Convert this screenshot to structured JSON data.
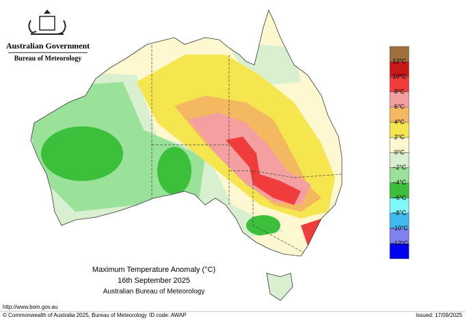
{
  "header": {
    "government": "Australian Government",
    "bureau": "Bureau of Meteorology"
  },
  "title": {
    "line1": "Maximum Temperature Anomaly (°C)",
    "line2": "16th September 2025",
    "line3": "Australian Bureau of Meteorology"
  },
  "legend": {
    "colors": [
      "#a0703c",
      "#c81818",
      "#f03c3c",
      "#f4a0a0",
      "#f4b860",
      "#f5e650",
      "#fdf8d0",
      "#d8f0d0",
      "#9ae29a",
      "#3cc03c",
      "#80f8f8",
      "#40b8f0",
      "#8080f0",
      "#0000f0"
    ],
    "labels": [
      "12°C",
      "10°C",
      "8°C",
      "6°C",
      "4°C",
      "2°C",
      "0°C",
      "−2°C",
      "−4°C",
      "−6°C",
      "−8°C",
      "−10°C",
      "−12°C"
    ]
  },
  "footer": {
    "url": "http://www.bom.gov.au",
    "copyright": "© Commonwealth of Australia 2025, Bureau of Meteorology",
    "id_code": "ID code: AWAP",
    "issued": "Issued: 17/09/2025"
  }
}
